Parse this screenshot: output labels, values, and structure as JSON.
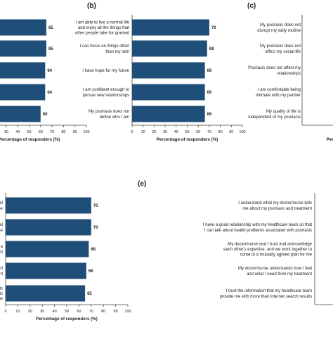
{
  "chart_data": [
    {
      "panel": "",
      "type": "bar",
      "orientation": "horizontal",
      "categories": [
        "",
        "",
        "",
        "",
        ""
      ],
      "values": [
        65,
        65,
        64,
        64,
        60
      ],
      "xlabel": "Percentage of responders (%)",
      "xlim": [
        0,
        100
      ],
      "xticks": [
        "0",
        "10",
        "20",
        "30",
        "40",
        "50",
        "60",
        "70",
        "80",
        "90",
        "100"
      ],
      "color": "#1f4e79"
    },
    {
      "panel": "(b)",
      "type": "bar",
      "orientation": "horizontal",
      "categories": [
        "I am able to live a normal life and enjoy all the things that other people take for granted",
        "I can focus on things other than my skin",
        "I have hope for my future",
        "I am confident enough to pursue new relationships",
        "My psoriasis does not define who I am"
      ],
      "category_lines": [
        [
          "I am able to live a normal life",
          "and enjoy all the things that",
          "other people take for granted"
        ],
        [
          "I can focus on things other",
          "than my skin"
        ],
        [
          "I have hope for my future"
        ],
        [
          "I am confident enough to",
          "pursue new relationships"
        ],
        [
          "My psoriasis does not",
          "define who I am"
        ]
      ],
      "values": [
        70,
        68,
        66,
        66,
        66
      ],
      "xlabel": "Percentage of responders (%)",
      "xlim": [
        0,
        100
      ],
      "xticks": [
        "0",
        "10",
        "20",
        "30",
        "40",
        "50",
        "60",
        "70",
        "80",
        "90",
        "100"
      ],
      "color": "#1f4e79"
    },
    {
      "panel": "(c)",
      "type": "bar",
      "orientation": "horizontal",
      "categories": [
        "My psoriasis does not disrupt my daily routine",
        "My psoriasis does not affect my social life",
        "Psoriasis does not affect my relationships",
        "I am comfortable being intimate with my partner",
        "My quality of life is independent of my psoriasis"
      ],
      "category_lines": [
        [
          "My psoriasis does not",
          "disrupt my daily routine"
        ],
        [
          "My psoriasis does not",
          "affect my social life"
        ],
        [
          "Psoriasis does not affect my",
          "relationships"
        ],
        [
          "I am comfortable being",
          "intimate with my partner"
        ],
        [
          "My quality of life is",
          "independent of my psoriasis"
        ]
      ],
      "values": [
        null,
        null,
        null,
        null,
        null
      ],
      "xlabel": "Percentage of responders (%)",
      "color": "#1f4e79"
    },
    {
      "panel": "",
      "type": "bar",
      "orientation": "horizontal",
      "categories": [
        "...elps me feel ...my disease",
        "...elps me feel ...my disease",
        "...treatment has a ...nsisting effect",
        "...the cycle of ...sappointment",
        "...my psoriasis ...t treatments ...are available"
      ],
      "category_lines": [
        [
          "elps me feel",
          "' my disease"
        ],
        [
          "elps me feel",
          "' my disease"
        ],
        [
          "treatment has a",
          "isisting effect"
        ],
        [
          "the cycle of",
          "isappointment"
        ],
        [
          "my psoriasis",
          "t treatments",
          "are available"
        ]
      ],
      "values": [
        70,
        70,
        68,
        66,
        65
      ],
      "xlabel": "Percentage of responders (%)",
      "xlim": [
        0,
        100
      ],
      "xticks": [
        "0",
        "10",
        "20",
        "30",
        "40",
        "50",
        "60",
        "70",
        "80",
        "90",
        "100"
      ],
      "color": "#1f4e79"
    },
    {
      "panel": "(e)",
      "type": "bar",
      "orientation": "horizontal",
      "categories": [
        "I understand what my doctor/nurse tells me about my psoriasis and treatment",
        "I have a good relationship with my healthcare team so that I can talk about health problems associated with psoriasis",
        "My doctor/nurse and I trust and acknowledge each other's expertise, and we work together to come to a mutually agreed plan for me",
        "My doctor/nurse understands how I feel and what I need from my treatment",
        "I trust the information that my healthcare team provide me with more than internet search results"
      ],
      "category_lines": [
        [
          "I understand what my doctor/nurse tells",
          "me about my psoriasis and treatment"
        ],
        [
          "I have a good relationship with my healthcare team so that",
          "I can talk about health problems associated with psoriasis"
        ],
        [
          "My doctor/nurse and I trust and acknowledge",
          "each other's expertise, and we work together to",
          "come to a mutually agreed plan for me"
        ],
        [
          "My doctor/nurse understands how I feel",
          "and what I need from my treatment"
        ],
        [
          "I trust the information that my healthcare team",
          "provide me with more than internet search results"
        ]
      ],
      "values": [
        null,
        null,
        null,
        null,
        null
      ],
      "xlabel": "Percentage of responders (%)",
      "color": "#1f4e79"
    }
  ]
}
